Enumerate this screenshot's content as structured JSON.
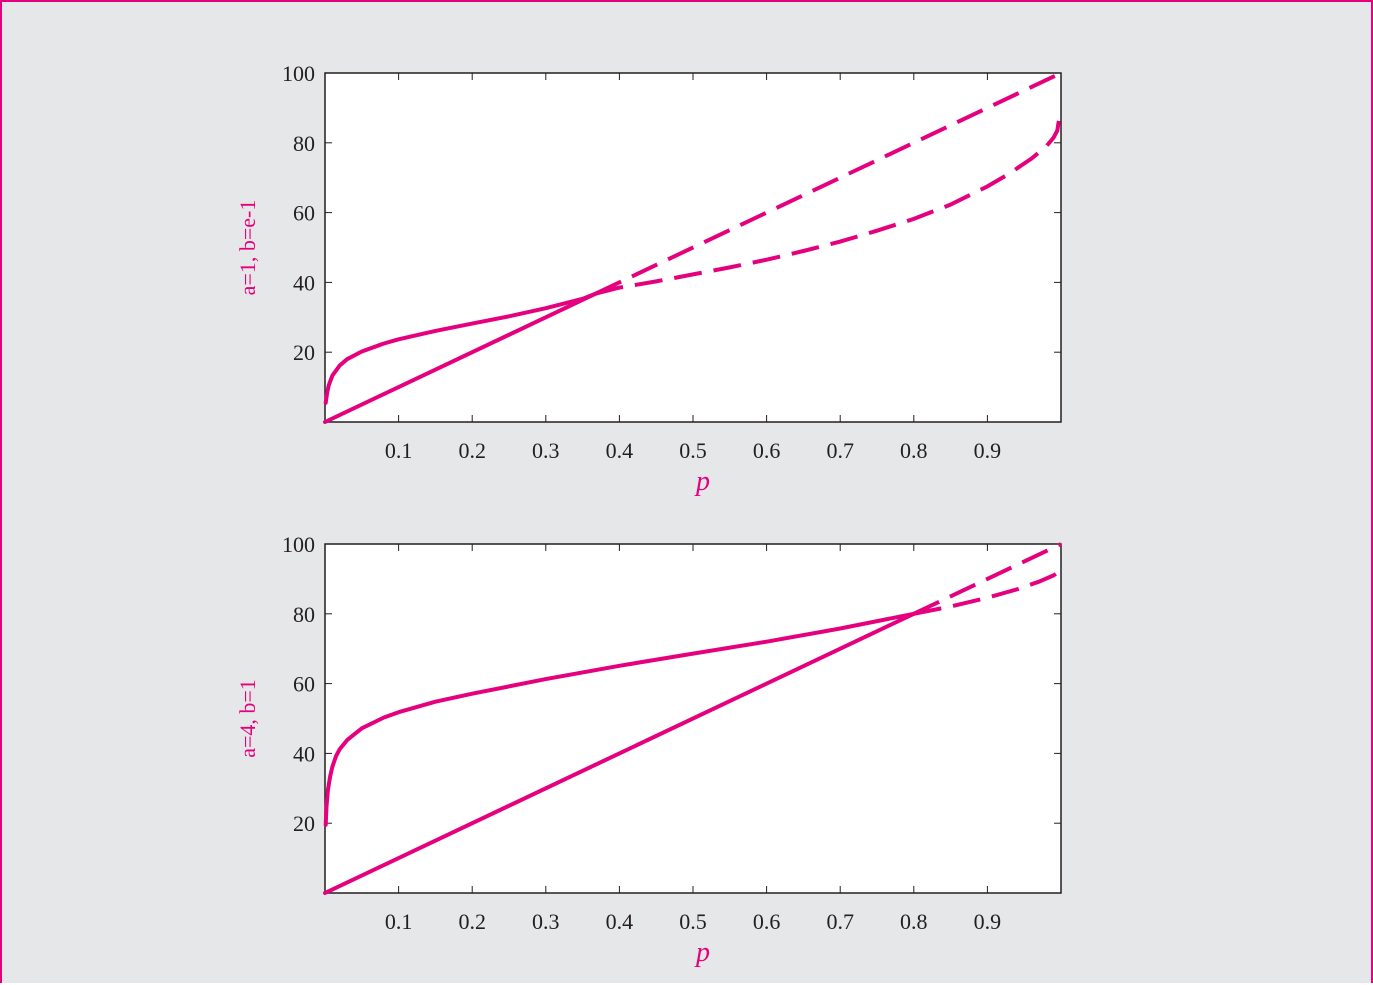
{
  "colors": {
    "background": "#e6e7e8",
    "accent": "#e5007e",
    "axis": "#231f20",
    "plot_background": "#ffffff"
  },
  "chart_data": [
    {
      "type": "line",
      "title": "",
      "xlabel": "p",
      "ylabel": "a=1, b=e-1",
      "xlim": [
        0,
        1
      ],
      "ylim": [
        0,
        100
      ],
      "xticks": [
        0.1,
        0.2,
        0.3,
        0.4,
        0.5,
        0.6,
        0.7,
        0.8,
        0.9
      ],
      "xtick_labels": [
        "0.1",
        "0.2",
        "0.3",
        "0.4",
        "0.5",
        "0.6",
        "0.7",
        "0.8",
        "0.9"
      ],
      "yticks": [
        20,
        40,
        60,
        80,
        100
      ],
      "ytick_labels": [
        "20",
        "40",
        "60",
        "80",
        "100"
      ],
      "grid": false,
      "series": [
        {
          "style": "solid",
          "x": [
            0,
            0.368
          ],
          "y": [
            0,
            36.8
          ]
        },
        {
          "style": "dashed",
          "x": [
            0.368,
            1.0
          ],
          "y": [
            36.8,
            100
          ]
        },
        {
          "style": "solid",
          "x": [
            0.001,
            0.003,
            0.005,
            0.01,
            0.02,
            0.03,
            0.05,
            0.08,
            0.1,
            0.15,
            0.2,
            0.25,
            0.3,
            0.35,
            0.368
          ],
          "y": [
            5.5,
            8.5,
            10.5,
            13.3,
            16.2,
            18.0,
            20.2,
            22.5,
            23.7,
            26.1,
            28.2,
            30.3,
            32.6,
            35.3,
            36.8
          ]
        },
        {
          "style": "dashed",
          "x": [
            0.368,
            0.4,
            0.45,
            0.5,
            0.55,
            0.6,
            0.65,
            0.7,
            0.75,
            0.8,
            0.85,
            0.9,
            0.93,
            0.96,
            0.98,
            0.99,
            0.995,
            0.999
          ],
          "y": [
            36.8,
            38.5,
            40.3,
            42.3,
            44.3,
            46.5,
            49.0,
            51.7,
            54.8,
            58.2,
            62.3,
            67.5,
            71.2,
            75.5,
            79.0,
            81.5,
            83.5,
            89.0
          ]
        }
      ]
    },
    {
      "type": "line",
      "title": "",
      "xlabel": "p",
      "ylabel": "a=4, b=1",
      "xlim": [
        0,
        1
      ],
      "ylim": [
        0,
        100
      ],
      "xticks": [
        0.1,
        0.2,
        0.3,
        0.4,
        0.5,
        0.6,
        0.7,
        0.8,
        0.9
      ],
      "xtick_labels": [
        "0.1",
        "0.2",
        "0.3",
        "0.4",
        "0.5",
        "0.6",
        "0.7",
        "0.8",
        "0.9"
      ],
      "yticks": [
        20,
        40,
        60,
        80,
        100
      ],
      "ytick_labels": [
        "20",
        "40",
        "60",
        "80",
        "100"
      ],
      "grid": false,
      "series": [
        {
          "style": "solid",
          "x": [
            0,
            0.8
          ],
          "y": [
            0,
            80
          ]
        },
        {
          "style": "dashed",
          "x": [
            0.8,
            1.0
          ],
          "y": [
            80,
            100
          ]
        },
        {
          "style": "solid",
          "x": [
            0.001,
            0.002,
            0.004,
            0.007,
            0.01,
            0.015,
            0.02,
            0.03,
            0.05,
            0.08,
            0.1,
            0.15,
            0.2,
            0.3,
            0.4,
            0.5,
            0.6,
            0.7,
            0.8
          ],
          "y": [
            19.5,
            24.8,
            29.5,
            33.5,
            36.2,
            39.2,
            41.2,
            43.8,
            47.2,
            50.3,
            51.8,
            54.8,
            57.1,
            61.3,
            65.1,
            68.6,
            72.0,
            75.8,
            80.0
          ]
        },
        {
          "style": "dashed",
          "x": [
            0.8,
            0.85,
            0.9,
            0.94,
            0.97,
            0.99,
            0.999
          ],
          "y": [
            80.0,
            82.1,
            84.6,
            87.0,
            89.2,
            91.0,
            92.3
          ]
        }
      ]
    }
  ]
}
